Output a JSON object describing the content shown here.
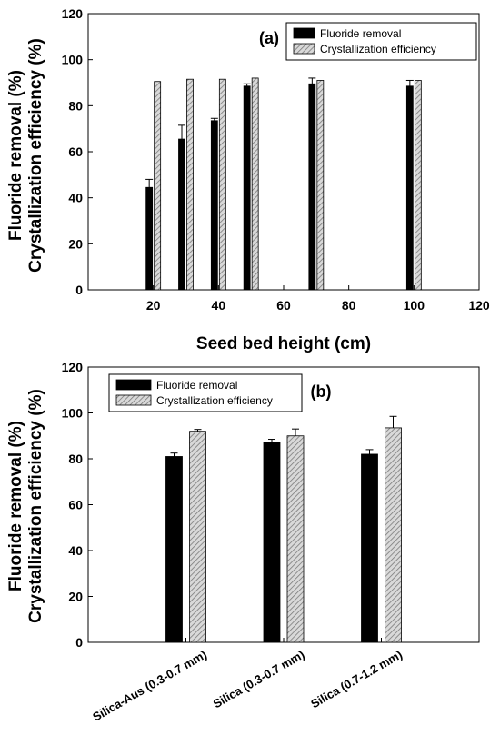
{
  "colors": {
    "removal": "#000000",
    "crystallization_fill": "#d9d9d9",
    "crystallization_hatch": "#7a7a7a",
    "axis": "#000000"
  },
  "y_axis_label_line1": "Fluoride removal (%)",
  "y_axis_label_line2": "Crystallization efficiency (%)",
  "chart_data": [
    {
      "type": "bar",
      "panel_label": "(a)",
      "xlabel": "Seed bed height (cm)",
      "ylabel": "Fluoride removal (%) / Crystallization efficiency (%)",
      "x": [
        20,
        30,
        40,
        50,
        70,
        100
      ],
      "xlim": [
        0,
        120
      ],
      "ylim": [
        0,
        120
      ],
      "xticks": [
        20,
        40,
        60,
        80,
        100,
        120
      ],
      "yticks": [
        0,
        20,
        40,
        60,
        80,
        100,
        120
      ],
      "legend_position": "top-right",
      "series": [
        {
          "name": "Fluoride removal",
          "values": [
            44.5,
            65.5,
            73.5,
            88.5,
            89.5,
            88.5
          ],
          "errors": [
            3.5,
            6.0,
            1.0,
            1.0,
            2.5,
            2.5
          ]
        },
        {
          "name": "Crystallization efficiency",
          "values": [
            90.5,
            91.5,
            91.5,
            92.0,
            91.0,
            91.0
          ],
          "errors": [
            0,
            0,
            0,
            0,
            0,
            0
          ]
        }
      ]
    },
    {
      "type": "bar",
      "panel_label": "(b)",
      "xlabel": "",
      "ylabel": "Fluoride removal (%) / Crystallization efficiency (%)",
      "categories": [
        "Silica-Aus (0.3-0.7 mm)",
        "Silica (0.3-0.7 mm)",
        "Silica (0.7-1.2 mm)"
      ],
      "ylim": [
        0,
        120
      ],
      "yticks": [
        0,
        20,
        40,
        60,
        80,
        100,
        120
      ],
      "legend_position": "top-left",
      "series": [
        {
          "name": "Fluoride removal",
          "values": [
            81.0,
            87.0,
            82.0
          ],
          "errors": [
            1.5,
            1.5,
            2.0
          ]
        },
        {
          "name": "Crystallization efficiency",
          "values": [
            92.0,
            90.0,
            93.5
          ],
          "errors": [
            0.8,
            3.0,
            5.0
          ]
        }
      ]
    }
  ]
}
